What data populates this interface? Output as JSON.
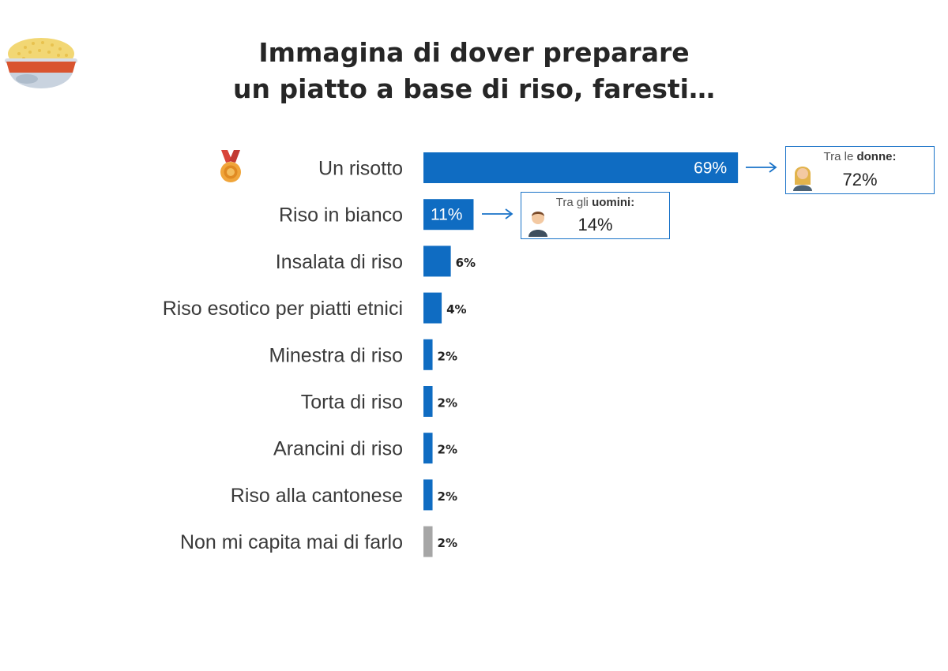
{
  "title": {
    "line1": "Immagina di dover preparare",
    "line2": "un piatto a base di riso, faresti…"
  },
  "colors": {
    "bar": "#0f6cc2",
    "bar_other": "#a6a6a6",
    "callout_border": "#1a73c8"
  },
  "icons": {
    "header": "rice-bowl-icon",
    "top_answer": "medal-icon",
    "women": "woman-avatar-icon",
    "men": "man-avatar-icon"
  },
  "chart_data": {
    "type": "bar",
    "orientation": "horizontal",
    "title": "Immagina di dover preparare un piatto a base di riso, faresti…",
    "categories": [
      "Un risotto",
      "Riso in bianco",
      "Insalata di riso",
      "Riso esotico per piatti etnici",
      "Minestra di riso",
      "Torta di riso",
      "Arancini di riso",
      "Riso alla cantonese",
      "Non mi capita mai di farlo"
    ],
    "values": [
      69,
      11,
      6,
      4,
      2,
      2,
      2,
      2,
      2
    ],
    "value_labels": [
      "69%",
      "11%",
      "6%",
      "4%",
      "2%",
      "2%",
      "2%",
      "2%",
      "2%"
    ],
    "unit": "%",
    "grid": false,
    "legend": "none",
    "xlim": [
      0,
      100
    ]
  },
  "callouts": {
    "women": {
      "prefix": "Tra le ",
      "bold": "donne:",
      "value": "72%"
    },
    "men": {
      "prefix": "Tra gli ",
      "bold": "uomini:",
      "value": "14%"
    }
  }
}
